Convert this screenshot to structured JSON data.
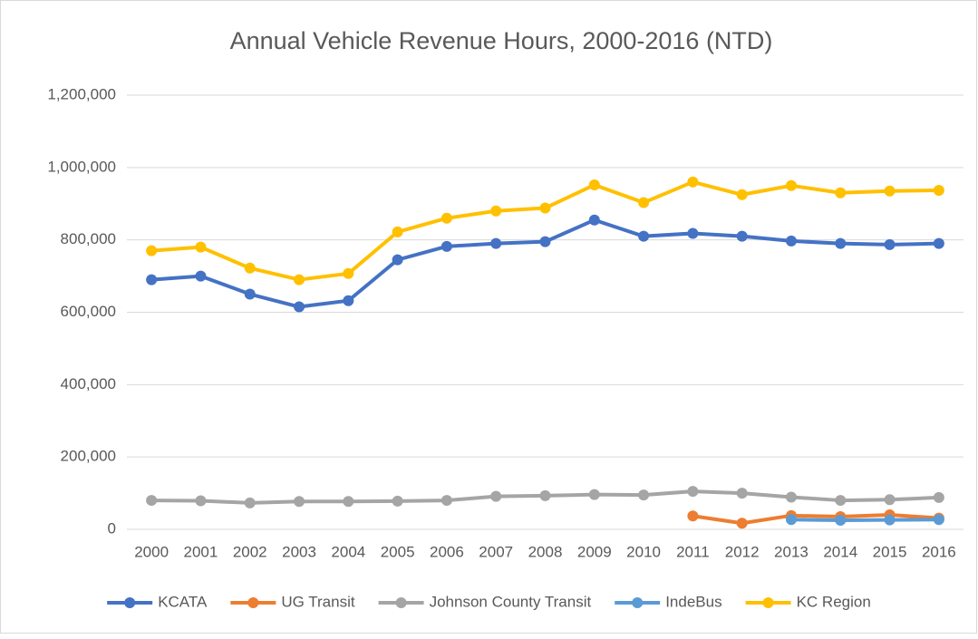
{
  "chart_data": {
    "type": "line",
    "title": "Annual Vehicle Revenue Hours, 2000-2016 (NTD)",
    "categories": [
      "2000",
      "2001",
      "2002",
      "2003",
      "2004",
      "2005",
      "2006",
      "2007",
      "2008",
      "2009",
      "2010",
      "2011",
      "2012",
      "2013",
      "2014",
      "2015",
      "2016"
    ],
    "series": [
      {
        "name": "KCATA",
        "color": "#4472c4",
        "values": [
          690000,
          700000,
          650000,
          615000,
          632000,
          745000,
          782000,
          790000,
          795000,
          855000,
          810000,
          818000,
          810000,
          797000,
          790000,
          787000,
          790000
        ]
      },
      {
        "name": "UG Transit",
        "color": "#ed7d31",
        "values": [
          null,
          null,
          null,
          null,
          null,
          null,
          null,
          null,
          null,
          null,
          null,
          37000,
          17000,
          38000,
          35000,
          40000,
          31000
        ]
      },
      {
        "name": "Johnson County Transit",
        "color": "#a5a5a5",
        "values": [
          80000,
          79000,
          73000,
          77000,
          77000,
          78000,
          80000,
          91000,
          93000,
          96000,
          95000,
          105000,
          100000,
          89000,
          80000,
          82000,
          88000
        ]
      },
      {
        "name": "IndeBus",
        "color": "#5b9bd5",
        "values": [
          null,
          null,
          null,
          null,
          null,
          null,
          null,
          null,
          null,
          null,
          null,
          null,
          null,
          27000,
          25000,
          26000,
          27000
        ]
      },
      {
        "name": "KC Region",
        "color": "#ffc000",
        "values": [
          770000,
          780000,
          722000,
          690000,
          707000,
          822000,
          860000,
          880000,
          888000,
          952000,
          903000,
          960000,
          925000,
          950000,
          930000,
          935000,
          937000
        ]
      }
    ],
    "ylim": [
      0,
      1200000
    ],
    "yticks": [
      0,
      {
        "value": 200000,
        "label": "200,000"
      },
      {
        "value": 400000,
        "label": "400,000"
      },
      {
        "value": 600000,
        "label": "600,000"
      },
      {
        "value": 800000,
        "label": "800,000"
      },
      {
        "value": 1000000,
        "label": "1,000,000"
      },
      {
        "value": 1200000,
        "label": "1,200,000"
      }
    ],
    "grid": true,
    "legend": "bottom"
  }
}
